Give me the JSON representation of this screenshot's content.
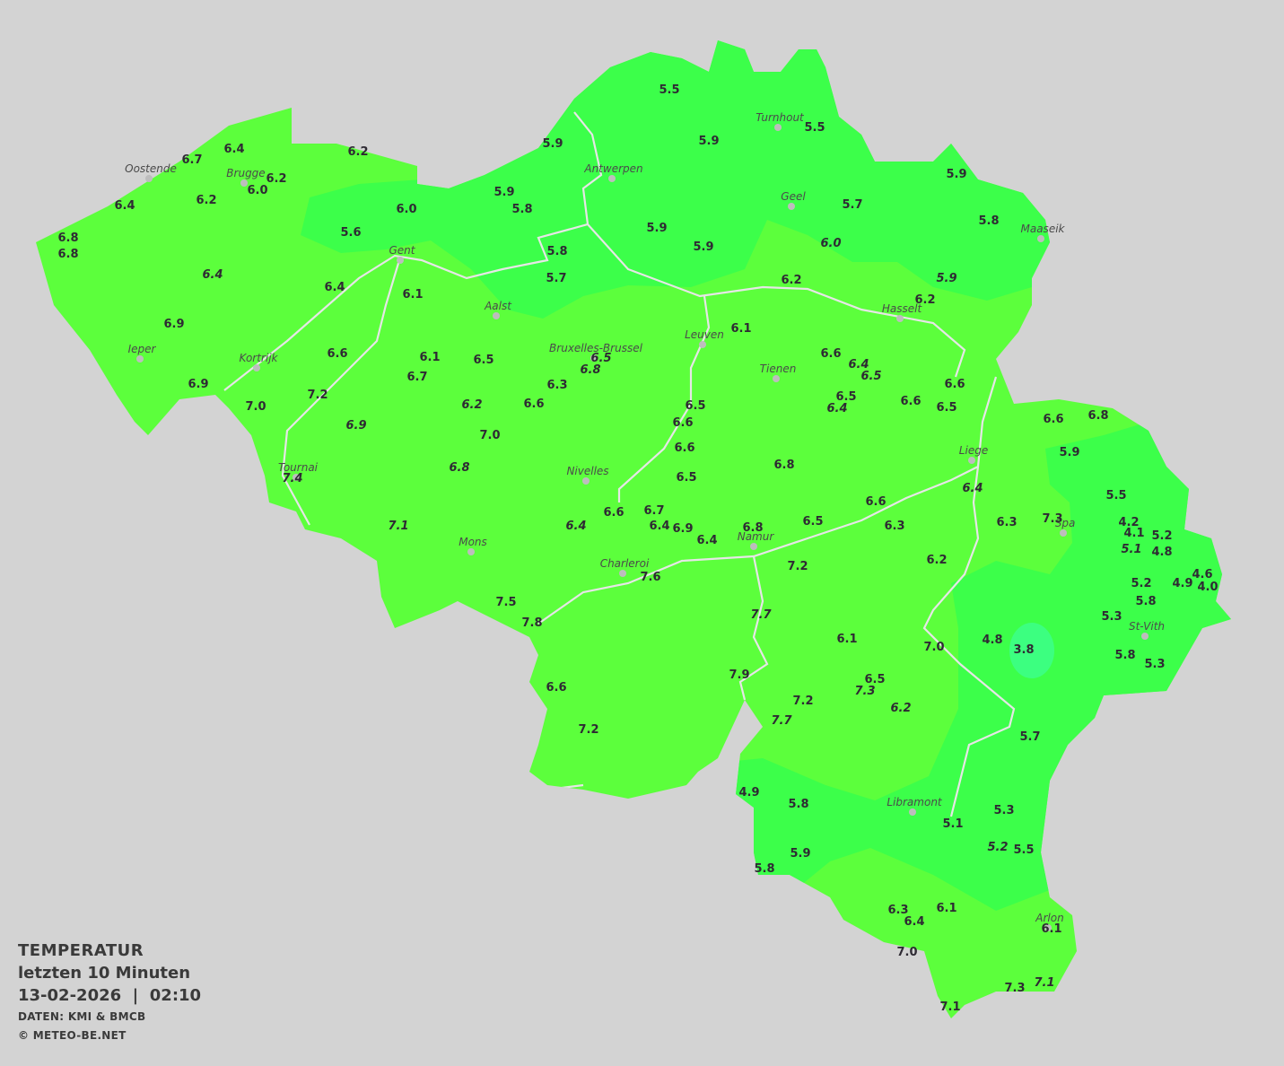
{
  "legend": {
    "title": "TEMPERATUR",
    "subtitle": "letzten 10 Minuten",
    "datetime": "13-02-2026  |  02:10",
    "source": "DATEN: KMI & BMCB",
    "copyright": "© METEO-BE.NET"
  },
  "colors": {
    "background": "#d3d3d3",
    "zone_6_to_8": "#5cff3c",
    "zone_4_to_6": "#3cff4a",
    "zone_below_4": "#3cff80",
    "rivers": "#e6e6e6",
    "city_dot": "#bdbdbd"
  },
  "cities": [
    "Oostende",
    "Brugge",
    "Antwerpen",
    "Turnhout",
    "Geel",
    "Maaseik",
    "Gent",
    "Aalst",
    "Leuven",
    "Hasselt",
    "Bruxelles-Brussel",
    "Tienen",
    "Ieper",
    "Kortrijk",
    "Liege",
    "Tournai",
    "Nivelles",
    "Spa",
    "Mons",
    "Namur",
    "Charleroi",
    "St-Vith",
    "Libramont",
    "Arlon"
  ],
  "stations": [
    {
      "v": "5.5"
    },
    {
      "v": "5.9"
    },
    {
      "v": "5.9"
    },
    {
      "v": "5.5"
    },
    {
      "v": "6.2"
    },
    {
      "v": "6.4"
    },
    {
      "v": "6.7"
    },
    {
      "v": "6.2"
    },
    {
      "v": "6.0"
    },
    {
      "v": "6.2"
    },
    {
      "v": "6.4"
    },
    {
      "v": "6.8"
    },
    {
      "v": "6.8"
    },
    {
      "v": "6.0"
    },
    {
      "v": "5.9"
    },
    {
      "v": "5.8"
    },
    {
      "v": "5.6"
    },
    {
      "v": "5.9"
    },
    {
      "v": "5.7"
    },
    {
      "v": "5.8"
    },
    {
      "v": "5.9"
    },
    {
      "v": "5.9"
    },
    {
      "v": "6.0",
      "i": true
    },
    {
      "v": "5.9",
      "i": true
    },
    {
      "v": "5.8"
    },
    {
      "v": "5.7"
    },
    {
      "v": "6.4",
      "i": true
    },
    {
      "v": "6.4"
    },
    {
      "v": "6.1"
    },
    {
      "v": "6.2"
    },
    {
      "v": "6.2"
    },
    {
      "v": "6.9"
    },
    {
      "v": "6.1"
    },
    {
      "v": "6.6"
    },
    {
      "v": "6.1"
    },
    {
      "v": "6.5"
    },
    {
      "v": "6.5",
      "i": true
    },
    {
      "v": "6.8",
      "i": true
    },
    {
      "v": "6.6"
    },
    {
      "v": "6.4",
      "i": true
    },
    {
      "v": "6.5",
      "i": true
    },
    {
      "v": "6.7"
    },
    {
      "v": "6.3"
    },
    {
      "v": "6.9"
    },
    {
      "v": "7.2"
    },
    {
      "v": "6.2",
      "i": true
    },
    {
      "v": "6.6"
    },
    {
      "v": "6.5"
    },
    {
      "v": "6.6"
    },
    {
      "v": "6.5"
    },
    {
      "v": "6.4",
      "i": true
    },
    {
      "v": "6.6"
    },
    {
      "v": "6.6"
    },
    {
      "v": "6.5"
    },
    {
      "v": "7.0"
    },
    {
      "v": "6.9",
      "i": true
    },
    {
      "v": "7.0"
    },
    {
      "v": "6.6"
    },
    {
      "v": "6.8",
      "i": true
    },
    {
      "v": "7.4",
      "i": true
    },
    {
      "v": "6.5"
    },
    {
      "v": "6.8"
    },
    {
      "v": "6.6"
    },
    {
      "v": "6.8"
    },
    {
      "v": "5.9"
    },
    {
      "v": "6.4",
      "i": true
    },
    {
      "v": "5.5"
    },
    {
      "v": "7.1",
      "i": true
    },
    {
      "v": "6.4",
      "i": true
    },
    {
      "v": "6.6"
    },
    {
      "v": "6.7"
    },
    {
      "v": "6.4"
    },
    {
      "v": "6.9"
    },
    {
      "v": "6.4"
    },
    {
      "v": "6.8"
    },
    {
      "v": "6.5"
    },
    {
      "v": "6.6"
    },
    {
      "v": "6.3"
    },
    {
      "v": "6.3"
    },
    {
      "v": "7.3"
    },
    {
      "v": "4.2"
    },
    {
      "v": "4.1"
    },
    {
      "v": "5.2"
    },
    {
      "v": "5.1",
      "i": true
    },
    {
      "v": "4.8"
    },
    {
      "v": "7.2"
    },
    {
      "v": "6.2"
    },
    {
      "v": "7.6"
    },
    {
      "v": "5.2"
    },
    {
      "v": "4.9"
    },
    {
      "v": "4.6"
    },
    {
      "v": "4.0"
    },
    {
      "v": "5.8"
    },
    {
      "v": "7.5"
    },
    {
      "v": "7.8"
    },
    {
      "v": "7.7",
      "i": true
    },
    {
      "v": "5.3"
    },
    {
      "v": "6.1"
    },
    {
      "v": "7.0"
    },
    {
      "v": "4.8"
    },
    {
      "v": "3.8"
    },
    {
      "v": "5.8"
    },
    {
      "v": "5.3"
    },
    {
      "v": "7.9"
    },
    {
      "v": "6.5"
    },
    {
      "v": "7.3",
      "i": true
    },
    {
      "v": "6.6"
    },
    {
      "v": "7.2"
    },
    {
      "v": "6.2",
      "i": true
    },
    {
      "v": "7.7",
      "i": true
    },
    {
      "v": "7.2"
    },
    {
      "v": "5.7"
    },
    {
      "v": "4.9"
    },
    {
      "v": "5.8"
    },
    {
      "v": "5.1"
    },
    {
      "v": "5.3"
    },
    {
      "v": "5.2",
      "i": true
    },
    {
      "v": "5.5"
    },
    {
      "v": "5.9"
    },
    {
      "v": "5.8"
    },
    {
      "v": "6.3"
    },
    {
      "v": "6.4"
    },
    {
      "v": "6.1"
    },
    {
      "v": "6.1"
    },
    {
      "v": "7.0"
    },
    {
      "v": "7.3"
    },
    {
      "v": "7.1",
      "i": true
    },
    {
      "v": "7.1"
    }
  ]
}
